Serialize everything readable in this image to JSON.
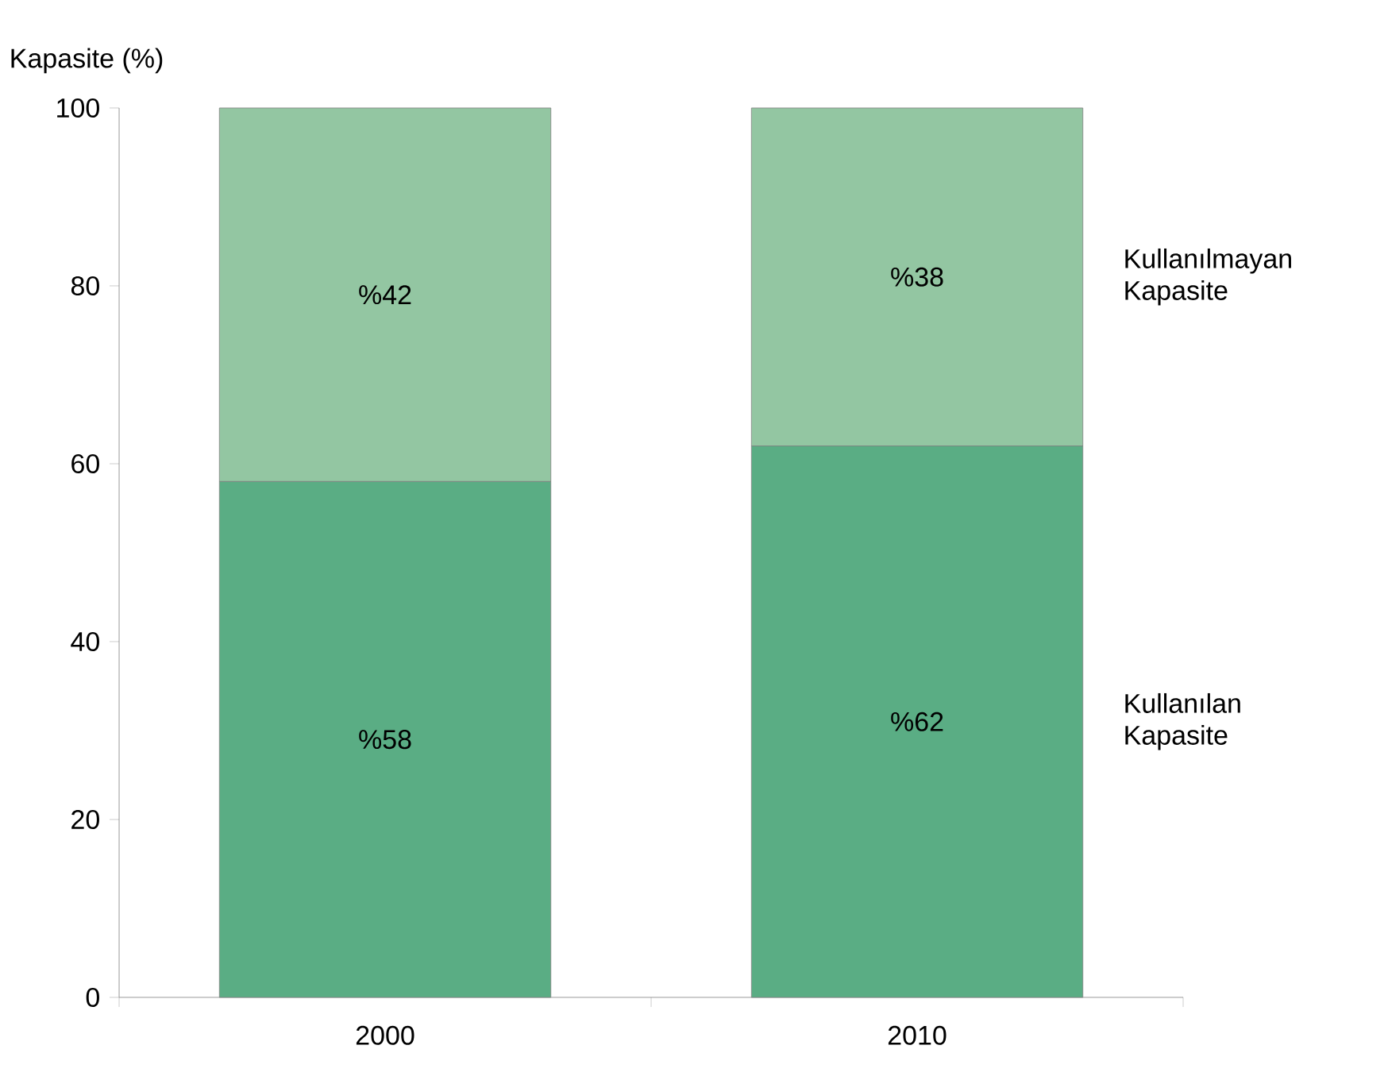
{
  "chart_data": {
    "type": "bar",
    "stacked": true,
    "ylabel": "Kapasite (%)",
    "categories": [
      "2000",
      "2010"
    ],
    "ylim": [
      0,
      100
    ],
    "yticks": [
      0,
      20,
      40,
      60,
      80,
      100
    ],
    "legend": "right",
    "grid": false,
    "series": [
      {
        "name": "Kullanılan Kapasite",
        "color": "#5aad84",
        "values": [
          58,
          62
        ],
        "value_labels": [
          "%58",
          "%62"
        ]
      },
      {
        "name": "Kullanılmayan Kapasite",
        "color": "#93c6a2",
        "values": [
          42,
          38
        ],
        "value_labels": [
          "%42",
          "%38"
        ]
      }
    ]
  }
}
